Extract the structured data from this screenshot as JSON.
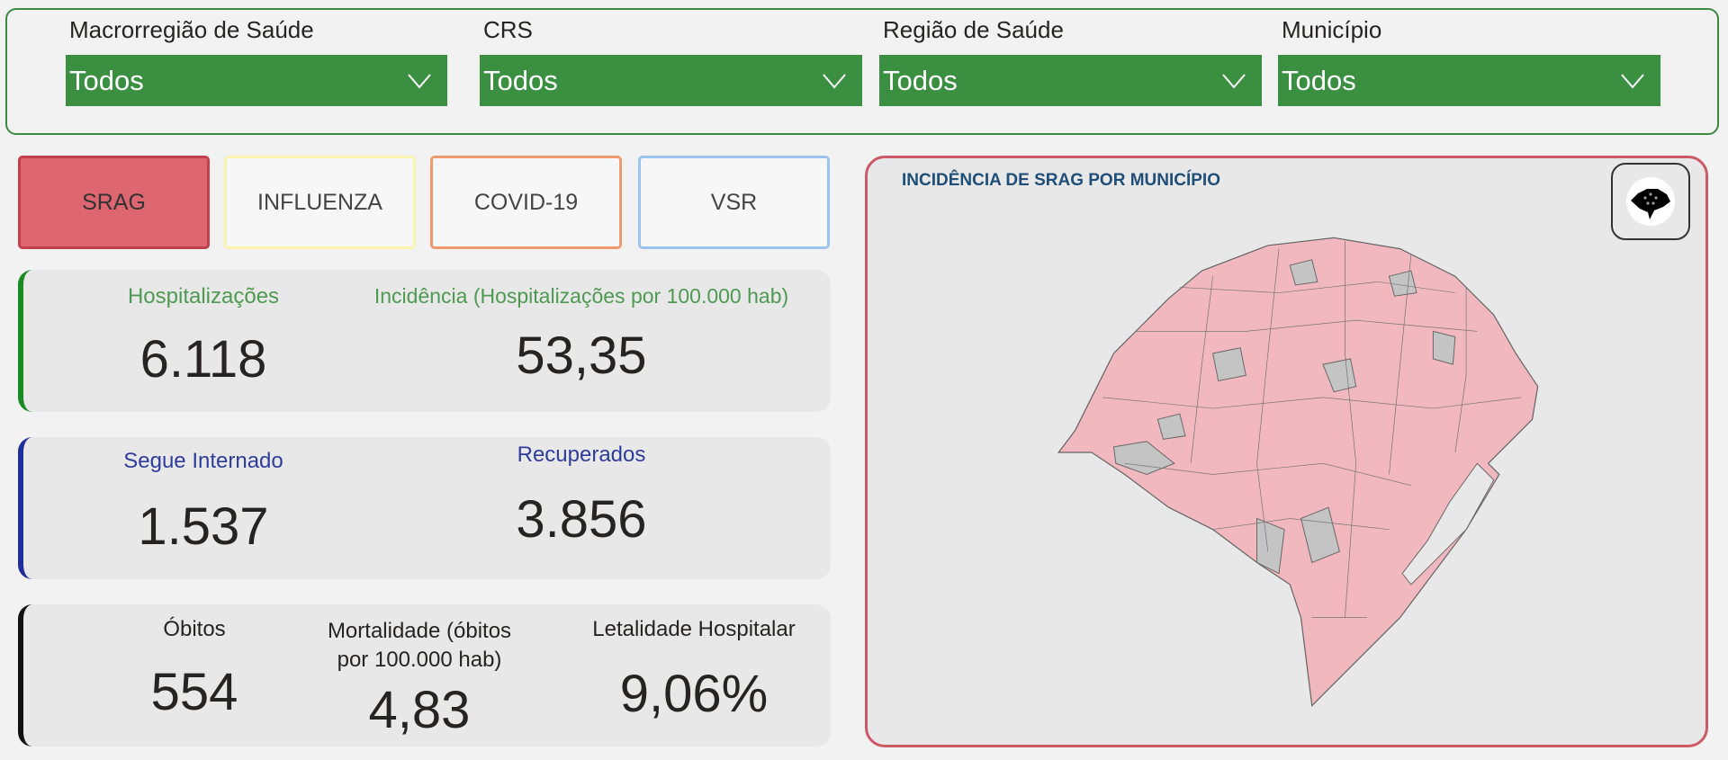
{
  "filters": [
    {
      "label": "Macrorregião de Saúde",
      "value": "Todos"
    },
    {
      "label": "CRS",
      "value": "Todos"
    },
    {
      "label": "Região de Saúde",
      "value": "Todos"
    },
    {
      "label": "Município",
      "value": "Todos"
    }
  ],
  "diseases": [
    {
      "label": "SRAG",
      "border": "#c0404c",
      "bg": "#de6670",
      "selected": true
    },
    {
      "label": "INFLUENZA",
      "border": "#fbf3b0",
      "bg": "#f7f7f7"
    },
    {
      "label": "COVID-19",
      "border": "#ef9a6c",
      "bg": "#f7f7f7"
    },
    {
      "label": "VSR",
      "border": "#9cc3ee",
      "bg": "#f7f7f7"
    }
  ],
  "cards": {
    "hospitalizacoes": {
      "label": "Hospitalizações",
      "value": "6.118"
    },
    "incidencia": {
      "label": "Incidência (Hospitalizações por 100.000 hab)",
      "value": "53,35"
    },
    "segue_internado": {
      "label": "Segue Internado",
      "value": "1.537"
    },
    "recuperados": {
      "label": "Recuperados",
      "value": "3.856"
    },
    "obitos": {
      "label": "Óbitos",
      "value": "554"
    },
    "mortalidade": {
      "label_line1": "Mortalidade (óbitos",
      "label_line2": "por 100.000 hab)",
      "value": "4,83"
    },
    "letalidade": {
      "label": "Letalidade Hospitalar",
      "value": "9,06%"
    }
  },
  "colors": {
    "green": "#3a8f41",
    "blue": "#1e2f9c",
    "black": "#111111",
    "map_fill": "#f2b8bf",
    "map_gray": "#c4c4c4"
  },
  "map": {
    "title": "INCIDÊNCIA DE SRAG POR MUNICÍPIO",
    "button_icon": "rs-state-flag-icon"
  }
}
